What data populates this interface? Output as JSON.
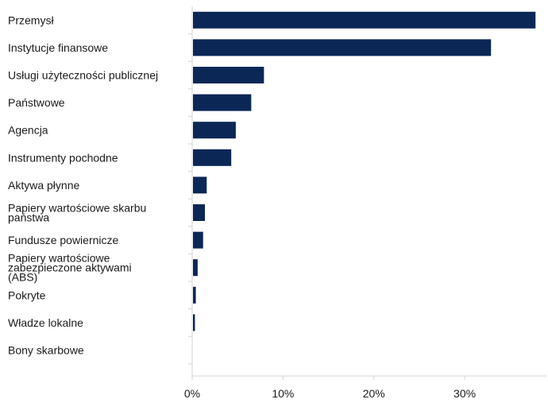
{
  "chart_data": {
    "type": "bar",
    "orientation": "horizontal",
    "title": "",
    "xlabel": "",
    "ylabel": "",
    "categories": [
      [
        "Przemysł"
      ],
      [
        "Instytucje finansowe"
      ],
      [
        "Usługi użyteczności publicznej"
      ],
      [
        "Państwowe"
      ],
      [
        "Agencja"
      ],
      [
        "Instrumenty pochodne"
      ],
      [
        "Aktywa płynne"
      ],
      [
        "Papiery wartościowe skarbu",
        "państwa"
      ],
      [
        "Fundusze powiernicze"
      ],
      [
        "Papiery wartościowe",
        "zabezpieczone aktywami",
        "(ABS)"
      ],
      [
        "Pokryte"
      ],
      [
        "Władze lokalne"
      ],
      [
        "Bony skarbowe"
      ]
    ],
    "values": [
      37.8,
      32.9,
      7.9,
      6.5,
      4.8,
      4.3,
      1.6,
      1.4,
      1.2,
      0.6,
      0.4,
      0.3,
      0.0
    ],
    "xlim": [
      0,
      39
    ],
    "ticks": [
      0,
      10,
      20,
      30
    ],
    "tick_labels": [
      "0%",
      "10%",
      "20%",
      "30%"
    ],
    "bar_color": "#0a2756",
    "grid": false,
    "legend": "none"
  }
}
